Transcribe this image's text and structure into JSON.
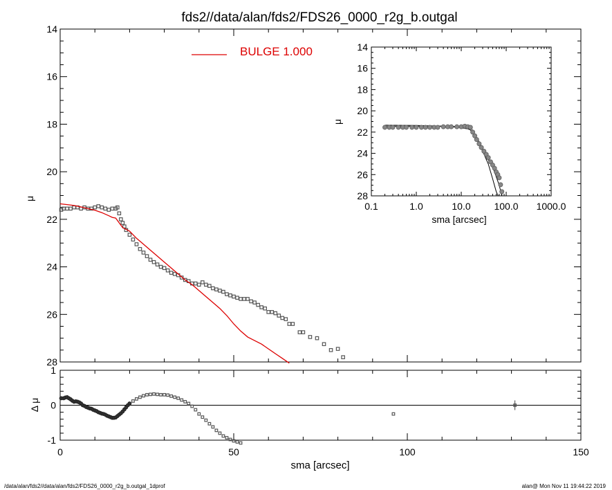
{
  "figure": {
    "title": "fds2//data/alan/fds2/FDS26_0000_r2g_b.outgal",
    "footer_left": "/data/alan/fds2//data/alan/fds2/FDS26_0000_r2g_b.outgal_1dprof",
    "footer_right": "alan@  Mon Nov 11 19:44:22 2019"
  },
  "chart_data": [
    {
      "id": "main",
      "type": "scatter",
      "title": "fds2//data/alan/fds2/FDS26_0000_r2g_b.outgal",
      "xlabel": "",
      "ylabel": "μ",
      "xlim": [
        0,
        150
      ],
      "ylim": [
        28,
        14
      ],
      "y_inverted": true,
      "x_ticks": [
        0,
        50,
        100,
        150
      ],
      "y_ticks": [
        14,
        16,
        18,
        20,
        22,
        24,
        26,
        28
      ],
      "y_tick_labels": [
        "14",
        "16",
        "18",
        "20",
        "22",
        "24",
        "26",
        "28"
      ],
      "legend": {
        "label": "BULGE  1.000",
        "color": "#dd0000",
        "placement": "top-center"
      },
      "series": [
        {
          "kind": "data-points",
          "color": "#555555",
          "x": [
            0.3,
            1,
            2,
            3,
            4,
            5,
            6,
            7,
            8,
            9,
            10,
            11,
            12,
            13,
            14,
            15,
            16,
            16.5,
            17,
            17.5,
            18,
            18.5,
            19,
            20,
            21,
            22,
            23,
            24,
            25,
            26,
            27,
            28,
            29,
            30,
            31,
            32,
            33,
            34,
            35,
            36,
            37,
            38,
            39,
            40,
            41,
            42,
            43,
            44,
            45,
            46,
            47,
            48,
            49,
            50,
            51,
            52,
            53,
            54,
            55,
            56,
            57,
            58,
            59,
            60,
            61,
            62,
            63,
            64,
            65,
            66,
            67,
            69,
            70,
            72,
            74,
            76,
            78,
            80,
            81.5
          ],
          "y": [
            21.6,
            21.55,
            21.55,
            21.55,
            21.5,
            21.5,
            21.55,
            21.5,
            21.55,
            21.55,
            21.5,
            21.45,
            21.5,
            21.55,
            21.6,
            21.55,
            21.55,
            21.5,
            21.75,
            22.0,
            22.15,
            22.3,
            22.45,
            22.65,
            22.85,
            23.05,
            23.25,
            23.4,
            23.55,
            23.7,
            23.8,
            23.9,
            24.0,
            24.05,
            24.15,
            24.25,
            24.3,
            24.35,
            24.45,
            24.55,
            24.6,
            24.7,
            24.7,
            24.75,
            24.65,
            24.75,
            24.8,
            24.9,
            24.95,
            25.0,
            25.05,
            25.15,
            25.2,
            25.25,
            25.3,
            25.35,
            25.35,
            25.35,
            25.45,
            25.5,
            25.6,
            25.7,
            25.75,
            25.9,
            25.9,
            25.95,
            26.05,
            26.15,
            26.2,
            26.4,
            26.4,
            26.75,
            26.75,
            26.95,
            27.0,
            27.25,
            27.5,
            27.45,
            27.8
          ]
        },
        {
          "kind": "model-line",
          "name": "BULGE  1.000",
          "color": "#dd0000",
          "x": [
            0,
            2,
            4,
            6,
            8,
            10,
            12,
            14,
            15,
            16,
            18,
            20,
            22,
            24,
            26,
            28,
            30,
            32,
            34,
            36,
            38,
            40,
            42,
            44,
            46,
            48,
            50,
            52,
            54,
            56,
            58,
            60,
            62,
            64,
            66
          ],
          "y": [
            21.35,
            21.38,
            21.42,
            21.48,
            21.55,
            21.62,
            21.72,
            21.85,
            21.92,
            21.95,
            22.35,
            22.5,
            22.8,
            23.05,
            23.3,
            23.55,
            23.8,
            24.05,
            24.3,
            24.55,
            24.75,
            25.0,
            25.25,
            25.5,
            25.75,
            26.05,
            26.4,
            26.7,
            26.95,
            27.1,
            27.25,
            27.45,
            27.65,
            27.85,
            28.05
          ]
        }
      ]
    },
    {
      "id": "inset",
      "type": "scatter",
      "xlabel": "sma [arcsec]",
      "ylabel": "μ",
      "x_log": true,
      "xlim": [
        0.1,
        1000
      ],
      "ylim": [
        28,
        14
      ],
      "y_inverted": true,
      "x_ticks": [
        0.1,
        1,
        10,
        100,
        1000
      ],
      "x_tick_labels": [
        "0.1",
        "1.0",
        "10.0",
        "100.0",
        "1000.0"
      ],
      "y_ticks": [
        14,
        16,
        18,
        20,
        22,
        24,
        26,
        28
      ],
      "y_tick_labels": [
        "14",
        "16",
        "18",
        "20",
        "22",
        "24",
        "26",
        "28"
      ],
      "series": [
        {
          "kind": "data-points",
          "color": "#777777",
          "x": [
            0.2,
            0.25,
            0.3,
            0.4,
            0.5,
            0.6,
            0.8,
            1.0,
            1.3,
            1.6,
            2.0,
            2.5,
            3.0,
            4.0,
            5.0,
            6.0,
            8.0,
            10.0,
            12.0,
            14.0,
            16.0,
            18.0,
            20.0,
            22.0,
            25.0,
            28.0,
            32.0,
            36.0,
            40.0,
            45.0,
            50.0,
            55.0,
            60.0,
            65.0,
            70.0,
            75.0,
            80.0
          ],
          "y": [
            21.55,
            21.55,
            21.55,
            21.55,
            21.55,
            21.55,
            21.55,
            21.55,
            21.55,
            21.55,
            21.55,
            21.55,
            21.55,
            21.5,
            21.5,
            21.5,
            21.5,
            21.5,
            21.45,
            21.5,
            21.55,
            22.0,
            22.35,
            22.7,
            23.1,
            23.45,
            23.8,
            24.1,
            24.4,
            24.8,
            25.1,
            25.4,
            25.75,
            26.0,
            26.3,
            26.95,
            27.6
          ]
        },
        {
          "kind": "model-line",
          "color": "#000000",
          "x": [
            0.2,
            1,
            5,
            10,
            14,
            16,
            20,
            30,
            40,
            50,
            60,
            66
          ],
          "y": [
            21.35,
            21.38,
            21.45,
            21.6,
            21.7,
            21.8,
            22.4,
            23.8,
            25.0,
            26.4,
            27.6,
            28.0
          ]
        },
        {
          "kind": "model-line",
          "color": "#000000",
          "x": [
            0.2,
            1,
            5,
            10,
            16,
            20,
            30,
            40,
            50,
            60,
            70,
            80
          ],
          "y": [
            21.45,
            21.45,
            21.45,
            21.5,
            21.55,
            22.2,
            23.5,
            24.6,
            25.3,
            26.2,
            27.0,
            28.0
          ]
        }
      ]
    },
    {
      "id": "residual",
      "type": "scatter",
      "xlabel": "sma [arcsec]",
      "ylabel": "Δ μ",
      "xlim": [
        0,
        150
      ],
      "ylim": [
        -1,
        1
      ],
      "x_ticks": [
        0,
        50,
        100,
        150
      ],
      "x_tick_labels": [
        "0",
        "50",
        "100",
        "150"
      ],
      "y_ticks": [
        -1,
        0,
        1
      ],
      "y_tick_labels": [
        "-1",
        "0",
        "1"
      ],
      "zero_line": true,
      "series": [
        {
          "kind": "residual-points",
          "color": "#222222",
          "x": [
            0.3,
            1,
            1.5,
            2,
            2.5,
            3,
            3.5,
            4,
            4.5,
            5,
            5.5,
            6,
            6.5,
            7,
            7.5,
            8,
            8.5,
            9,
            9.5,
            10,
            10.5,
            11,
            11.5,
            12,
            12.5,
            13,
            13.5,
            14,
            14.5,
            15,
            15.5,
            16,
            16.5,
            17,
            17.5,
            18,
            18.5,
            19,
            19.5,
            20,
            21,
            22,
            23,
            24,
            25,
            26,
            27,
            28,
            29,
            30,
            31,
            32,
            33,
            34,
            35,
            36,
            37,
            38,
            39,
            40,
            41,
            42,
            43,
            44,
            45,
            46,
            47,
            48,
            49,
            50,
            51,
            52,
            96,
            131
          ],
          "y": [
            0.2,
            0.2,
            0.22,
            0.23,
            0.2,
            0.17,
            0.13,
            0.1,
            0.11,
            0.1,
            0.08,
            0.05,
            0.0,
            -0.02,
            -0.05,
            -0.07,
            -0.09,
            -0.1,
            -0.13,
            -0.15,
            -0.17,
            -0.2,
            -0.22,
            -0.24,
            -0.25,
            -0.27,
            -0.3,
            -0.32,
            -0.34,
            -0.36,
            -0.36,
            -0.35,
            -0.31,
            -0.27,
            -0.23,
            -0.18,
            -0.12,
            -0.06,
            -0.0,
            0.05,
            0.12,
            0.18,
            0.23,
            0.27,
            0.3,
            0.31,
            0.32,
            0.31,
            0.3,
            0.3,
            0.29,
            0.26,
            0.23,
            0.2,
            0.15,
            0.1,
            0.05,
            -0.03,
            -0.13,
            -0.25,
            -0.34,
            -0.43,
            -0.53,
            -0.62,
            -0.72,
            -0.8,
            -0.88,
            -0.93,
            -0.98,
            -1.02,
            -1.05,
            -1.08,
            -0.25,
            0.0
          ]
        }
      ]
    }
  ]
}
